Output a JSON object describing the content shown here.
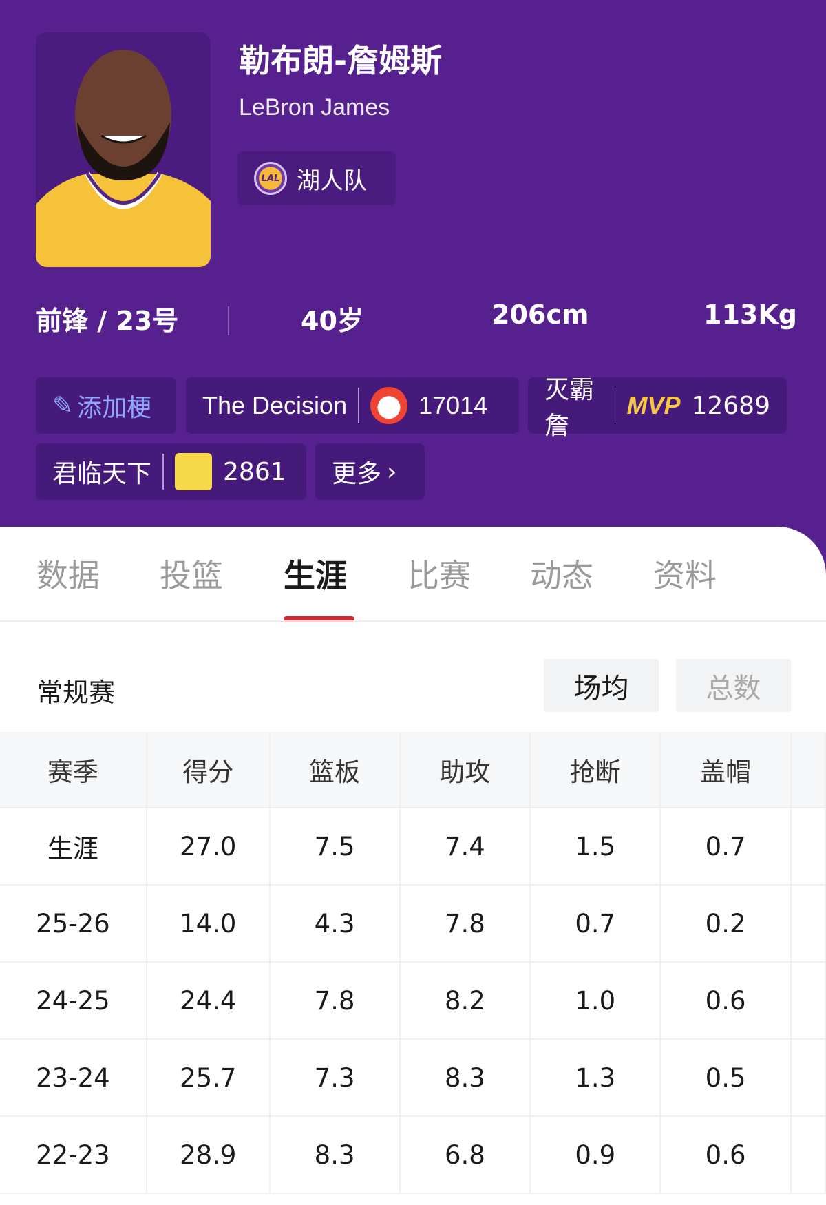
{
  "player": {
    "name_cn": "勒布朗-詹姆斯",
    "name_en": "LeBron James",
    "team": "湖人队",
    "team_logo": "LAL",
    "position": "前锋 / 23号",
    "age": "40岁",
    "height": "206cm",
    "weight": "113Kg"
  },
  "tags": {
    "add": "添加梗",
    "items": [
      {
        "label": "The Decision",
        "icon": "clown-emoji",
        "count": "17014"
      },
      {
        "label": "灭霸詹",
        "icon": "mvp-badge",
        "icon_text": "MVP",
        "count": "12689"
      },
      {
        "label": "君临天下",
        "icon": "laughing-emoji",
        "count": "2861"
      }
    ],
    "more": "更多"
  },
  "tabs": [
    "数据",
    "投篮",
    "生涯",
    "比赛",
    "动态",
    "资料"
  ],
  "active_tab": "生涯",
  "section": {
    "title": "常规赛",
    "toggle": [
      "场均",
      "总数"
    ],
    "selected": "场均"
  },
  "table": {
    "headers": [
      "赛季",
      "得分",
      "篮板",
      "助攻",
      "抢断",
      "盖帽"
    ],
    "rows": [
      [
        "生涯",
        "27.0",
        "7.5",
        "7.4",
        "1.5",
        "0.7"
      ],
      [
        "25-26",
        "14.0",
        "4.3",
        "7.8",
        "0.7",
        "0.2"
      ],
      [
        "24-25",
        "24.4",
        "7.8",
        "8.2",
        "1.0",
        "0.6"
      ],
      [
        "23-24",
        "25.7",
        "7.3",
        "8.3",
        "1.3",
        "0.5"
      ],
      [
        "22-23",
        "28.9",
        "8.3",
        "6.8",
        "0.9",
        "0.6"
      ]
    ]
  },
  "colors": {
    "header_bg": "#56208e",
    "accent": "#d8292e",
    "tag_bg": "#451a7a"
  }
}
